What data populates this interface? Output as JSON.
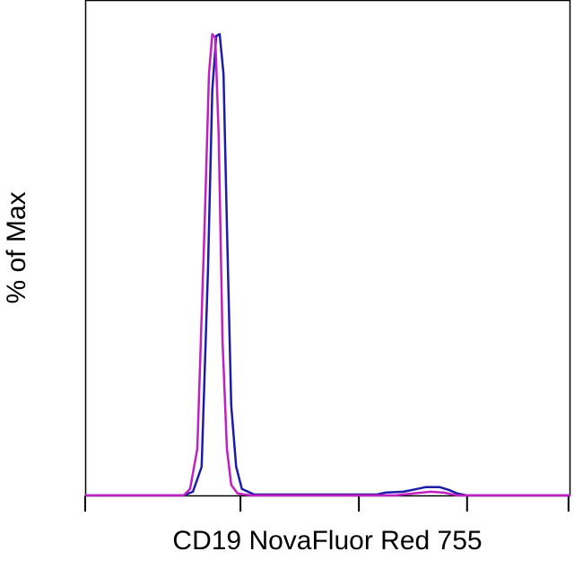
{
  "chart_data": {
    "type": "line",
    "x_label": "CD19 NovaFluor Red 755",
    "y_label": "% of Max",
    "xlim": [
      0,
      100
    ],
    "ylim": [
      0,
      100
    ],
    "xticks": [
      0,
      32.0,
      56.4,
      78.7,
      99.6
    ],
    "series": [
      {
        "color": "#1c1ca8",
        "x": [
          0,
          20.3,
          22.2,
          24.0,
          25.3,
          26.2,
          27.0,
          27.7,
          28.5,
          29.2,
          30.1,
          31.1,
          32.3,
          34.8,
          60.1,
          61.9,
          65.6,
          68.4,
          70.2,
          73.0,
          74.9,
          76.7,
          78.6,
          100
        ],
        "values": [
          0,
          0,
          0.8,
          6.2,
          49.0,
          87.9,
          99.6,
          100,
          91.4,
          58.4,
          19.5,
          6.2,
          1.4,
          0.2,
          0.2,
          0.6,
          0.8,
          1.4,
          1.8,
          1.8,
          1.2,
          0.4,
          0,
          0
        ]
      },
      {
        "color": "#c21fc2",
        "x": [
          0,
          20.3,
          21.6,
          23.1,
          24.6,
          25.5,
          26.2,
          26.8,
          27.5,
          28.3,
          29.2,
          30.1,
          31.4,
          34.2,
          63.8,
          67.5,
          71.2,
          73.9,
          76.7,
          100
        ],
        "values": [
          0,
          0,
          1.4,
          10.1,
          58.4,
          91.4,
          100,
          99.2,
          78.2,
          33.5,
          10.1,
          2.3,
          0.4,
          0,
          0,
          0.4,
          0.8,
          0.6,
          0,
          0
        ]
      }
    ]
  }
}
